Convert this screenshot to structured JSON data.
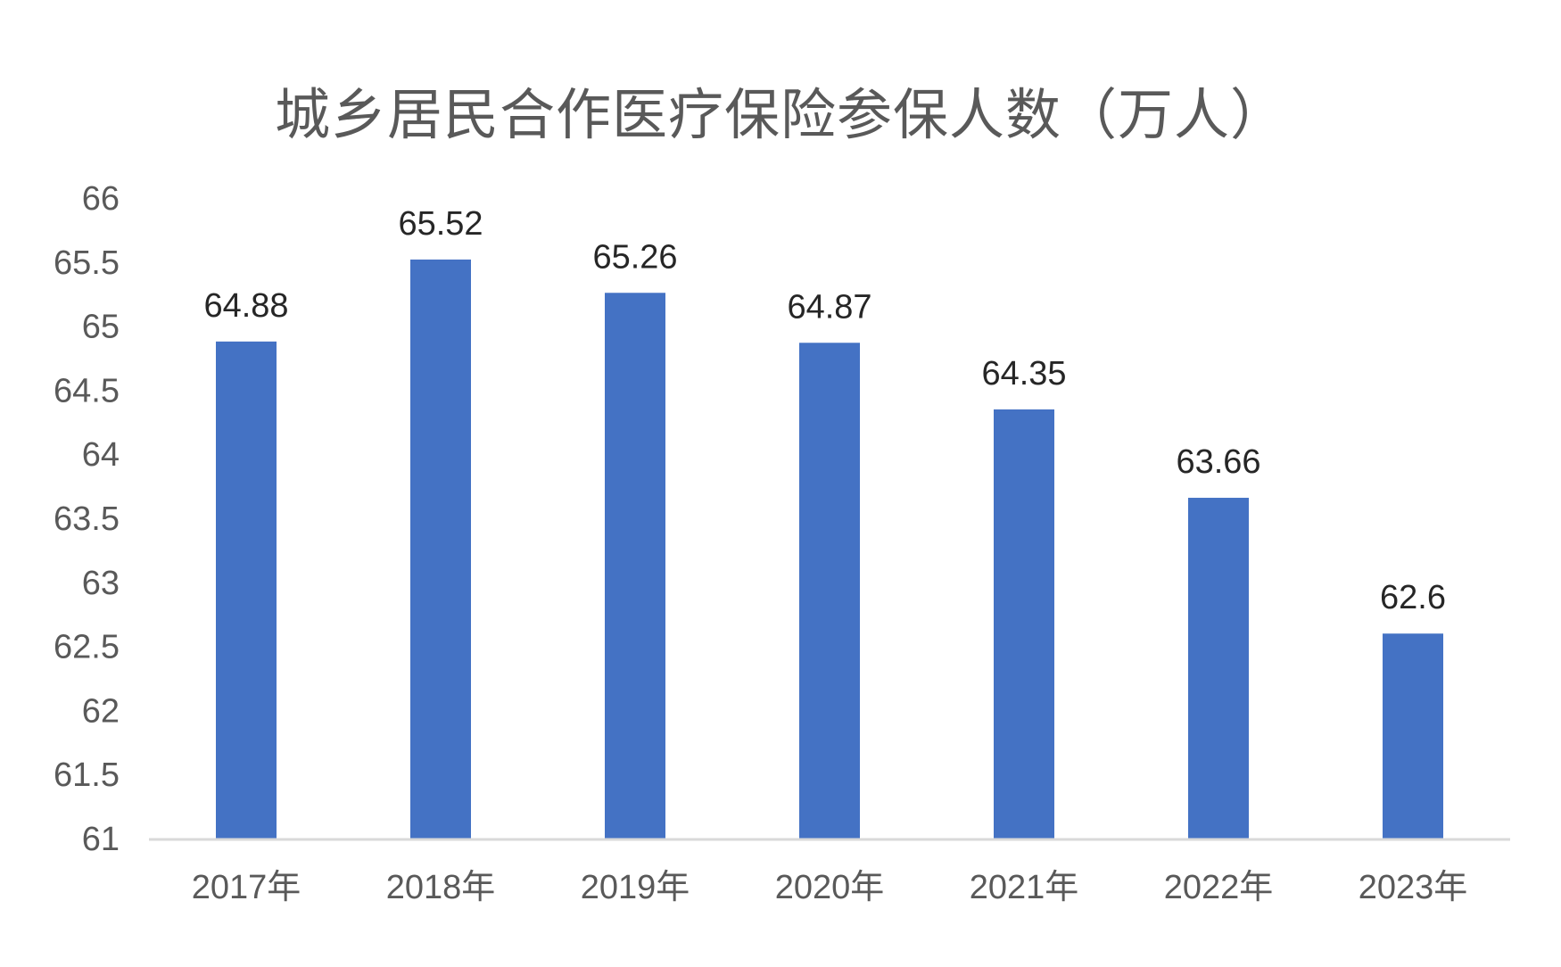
{
  "chart_data": {
    "type": "bar",
    "title": "城乡居民合作医疗保险参保人数（万人）",
    "xlabel": "",
    "ylabel": "",
    "categories": [
      "2017年",
      "2018年",
      "2019年",
      "2020年",
      "2021年",
      "2022年",
      "2023年"
    ],
    "values": [
      64.88,
      65.52,
      65.26,
      64.87,
      64.35,
      63.66,
      62.6
    ],
    "data_labels": [
      "64.88",
      "65.52",
      "65.26",
      "64.87",
      "64.35",
      "63.66",
      "62.6"
    ],
    "ylim": [
      61,
      66
    ],
    "yticks": [
      61,
      61.5,
      62,
      62.5,
      63,
      63.5,
      64,
      64.5,
      65,
      65.5,
      66
    ],
    "ytick_labels": [
      "61",
      "61.5",
      "62",
      "62.5",
      "63",
      "63.5",
      "64",
      "64.5",
      "65",
      "65.5",
      "66"
    ],
    "grid": false,
    "legend": "none",
    "bar_color": "#4472C4",
    "axis_color": "#D9D9D9"
  }
}
